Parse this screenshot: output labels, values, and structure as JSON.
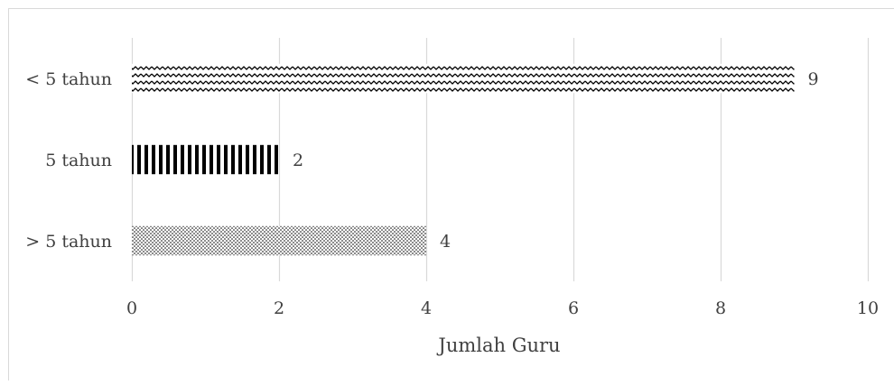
{
  "chart_data": {
    "type": "bar",
    "orientation": "horizontal",
    "categories": [
      "< 5 tahun",
      "5 tahun",
      "> 5 tahun"
    ],
    "values": [
      9,
      2,
      4
    ],
    "data_labels": [
      "9",
      "2",
      "4"
    ],
    "title": "",
    "xlabel": "Jumlah Guru",
    "ylabel": "",
    "xlim": [
      0,
      10
    ],
    "x_ticks": [
      0,
      2,
      4,
      6,
      8,
      10
    ],
    "x_tick_labels": [
      "0",
      "2",
      "4",
      "6",
      "8",
      "10"
    ],
    "grid": "vertical",
    "legend": "none",
    "bar_patterns": [
      "zigzag",
      "vertical-stripes",
      "dots"
    ],
    "colors": {
      "grid": "#d9d9d9",
      "bar_ink": "#000000",
      "text": "#404040",
      "border": "#d9d9d9"
    }
  }
}
